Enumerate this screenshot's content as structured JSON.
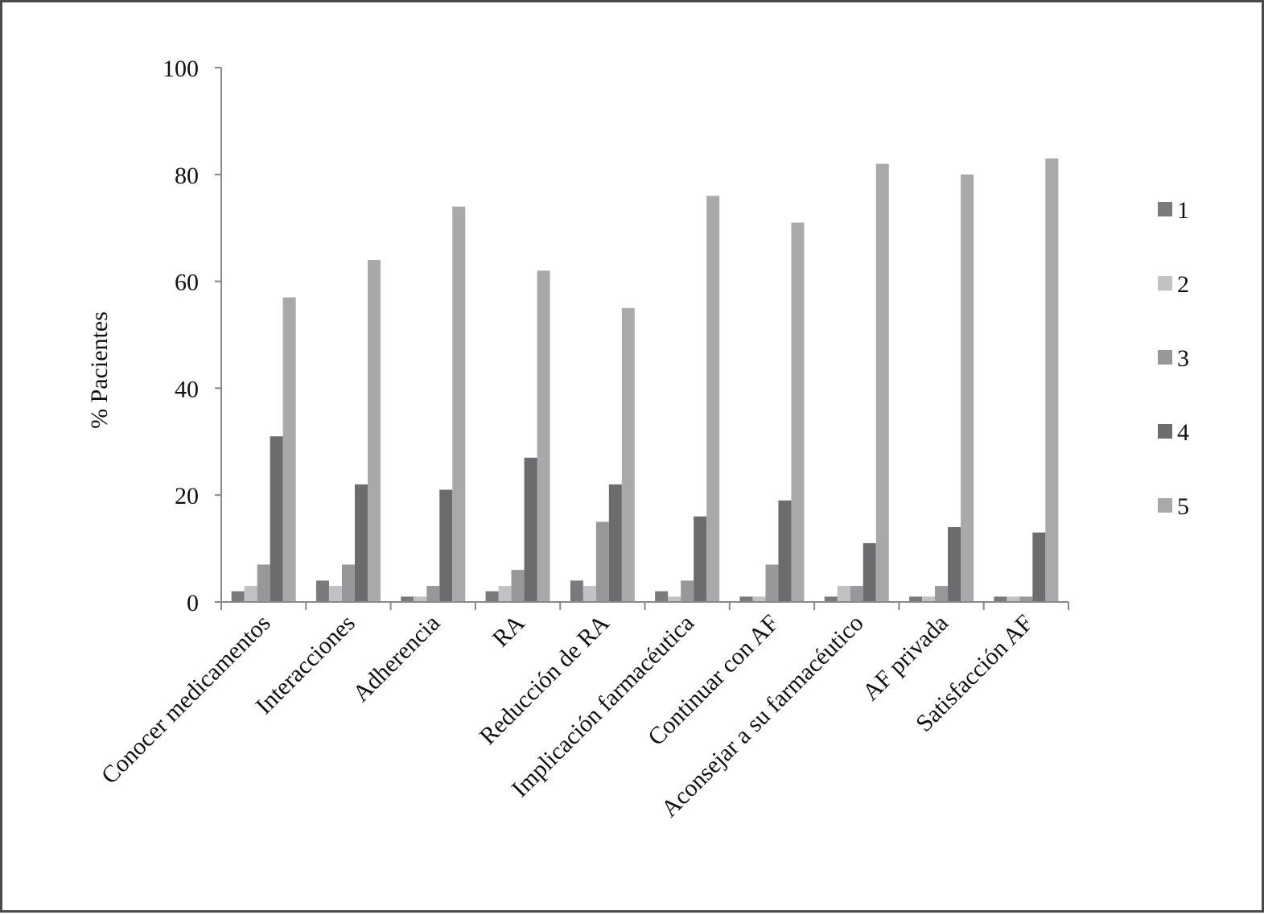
{
  "chart_data": {
    "type": "bar",
    "title": "",
    "xlabel": "",
    "ylabel": "% Pacientes",
    "ylim": [
      0,
      100
    ],
    "yticks": [
      0,
      20,
      40,
      60,
      80,
      100
    ],
    "grid": false,
    "legend_position": "right",
    "categories": [
      "Conocer medicamentos",
      "Interacciones",
      "Adherencia",
      "RA",
      "Reducción de RA",
      "Implicación farmacéutica",
      "Continuar con AF",
      "Aconsejar a su farmacéutico",
      "AF privada",
      "Satisfacción AF"
    ],
    "series": [
      {
        "name": "1",
        "color": "#7a7a7c",
        "values": [
          2,
          4,
          1,
          2,
          4,
          2,
          1,
          1,
          1,
          1
        ]
      },
      {
        "name": "2",
        "color": "#c2c2c4",
        "values": [
          3,
          3,
          1,
          3,
          3,
          1,
          1,
          3,
          1,
          1
        ]
      },
      {
        "name": "3",
        "color": "#98989a",
        "values": [
          7,
          7,
          3,
          6,
          15,
          4,
          7,
          3,
          3,
          1
        ]
      },
      {
        "name": "4",
        "color": "#6c6c6e",
        "values": [
          31,
          22,
          21,
          27,
          22,
          16,
          19,
          11,
          14,
          13
        ]
      },
      {
        "name": "5",
        "color": "#a9a9ab",
        "values": [
          57,
          64,
          74,
          62,
          55,
          76,
          71,
          82,
          80,
          83
        ]
      }
    ]
  }
}
